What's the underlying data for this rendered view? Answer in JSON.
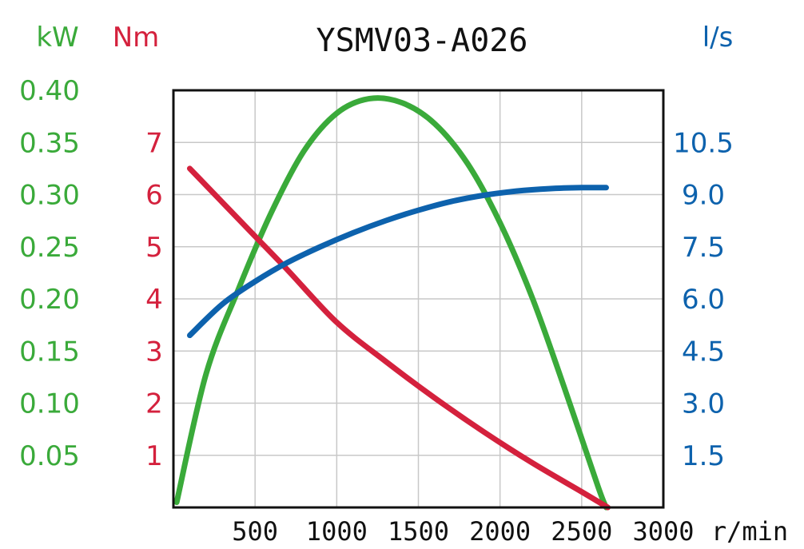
{
  "chart_data": {
    "type": "line",
    "title": "YSMV03-A026",
    "xlabel": "r/min",
    "xlim": [
      0,
      3000
    ],
    "x_ticks": [
      "500",
      "1000",
      "1500",
      "2000",
      "2500",
      "3000"
    ],
    "grid": true,
    "axes": {
      "power": {
        "unit": "kW",
        "color": "#3aaa3a",
        "range": [
          0,
          0.4
        ],
        "ticks": [
          "0.05",
          "0.10",
          "0.15",
          "0.20",
          "0.25",
          "0.30",
          "0.35",
          "0.40"
        ]
      },
      "torque": {
        "unit": "Nm",
        "color": "#d4213d",
        "range": [
          0,
          8
        ],
        "ticks": [
          "1",
          "2",
          "3",
          "4",
          "5",
          "6",
          "7"
        ]
      },
      "flow": {
        "unit": "l/s",
        "color": "#0d62ad",
        "range": [
          0,
          12
        ],
        "ticks": [
          "1.5",
          "3.0",
          "4.5",
          "6.0",
          "7.5",
          "9.0",
          "10.5"
        ]
      }
    },
    "series": [
      {
        "name": "power",
        "axis": "power",
        "color": "#3aaa3a",
        "x": [
          20,
          200,
          400,
          600,
          800,
          1000,
          1200,
          1400,
          1600,
          1800,
          2000,
          2200,
          2400,
          2600,
          2650
        ],
        "y": [
          0.005,
          0.128,
          0.21,
          0.283,
          0.342,
          0.378,
          0.392,
          0.388,
          0.368,
          0.33,
          0.273,
          0.2,
          0.112,
          0.02,
          0.0
        ]
      },
      {
        "name": "torque",
        "axis": "torque",
        "color": "#d4213d",
        "x": [
          100,
          300,
          500,
          700,
          1000,
          1300,
          1600,
          1900,
          2200,
          2500,
          2660
        ],
        "y": [
          6.5,
          5.85,
          5.2,
          4.55,
          3.55,
          2.8,
          2.1,
          1.45,
          0.85,
          0.3,
          0.0
        ]
      },
      {
        "name": "flow",
        "axis": "flow",
        "color": "#0d62ad",
        "x": [
          100,
          300,
          500,
          700,
          900,
          1100,
          1300,
          1500,
          1700,
          1900,
          2100,
          2300,
          2500,
          2650
        ],
        "y": [
          4.95,
          5.85,
          6.5,
          7.05,
          7.5,
          7.9,
          8.25,
          8.55,
          8.8,
          8.98,
          9.1,
          9.17,
          9.2,
          9.2
        ]
      }
    ]
  }
}
